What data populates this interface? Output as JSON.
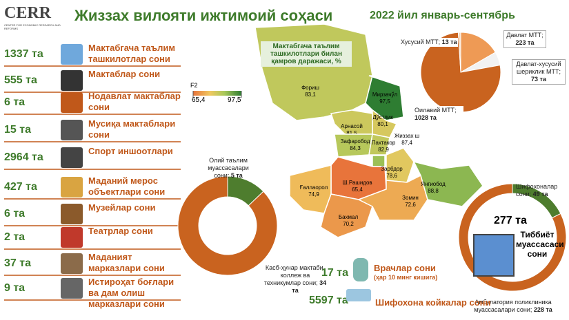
{
  "logo": {
    "name": "CERR",
    "subtitle": "CENTER FOR ECONOMIC RESEARCH AND REFORMS"
  },
  "title": "Жиззах вилояти ижтимоий соҳаси",
  "period": "2022 йил январь-сентябрь",
  "stats": [
    {
      "value": "1337 та",
      "label": "Мактабгача таълим ташкилотлар сони"
    },
    {
      "value": "555 та",
      "label": "Мактаблар сони"
    },
    {
      "value": "6 та",
      "label": "Нодавлат мактаблар сони"
    },
    {
      "value": "15 та",
      "label": "Мусиқа мактаблари сони"
    },
    {
      "value": "2964 та",
      "label": "Спорт иншоотлари"
    },
    {
      "value": "427 та",
      "label": "Маданий мерос объектлари сони"
    },
    {
      "value": "6 та",
      "label": "Музейлар сони"
    },
    {
      "value": "2 та",
      "label": "Театрлар сони"
    },
    {
      "value": "37 та",
      "label": "Маданият марказлари сони"
    },
    {
      "value": "9 та",
      "label": "Истироҳат боғлари ва дам олиш марказлари сони"
    }
  ],
  "map": {
    "title": "Мактабгача таълим ташкилотлари билан қамров даражаси, %",
    "legend": {
      "label": "F2",
      "min": {
        "value": 65.4,
        "label": "65,4"
      },
      "max": {
        "value": 97.5,
        "label": "97,5"
      }
    },
    "regions": [
      {
        "name": "Фориш",
        "value": 83.1,
        "label": "83,1"
      },
      {
        "name": "Мирзачўл",
        "value": 97.5,
        "label": "97,5"
      },
      {
        "name": "Дўстлик",
        "value": 80.1,
        "label": "80,1"
      },
      {
        "name": "Арнасой",
        "value": 81.5,
        "label": "81,5"
      },
      {
        "name": "Зафаробод",
        "value": 84.3,
        "label": "84,3"
      },
      {
        "name": "Пахтакор",
        "value": 82.9,
        "label": "82,9"
      },
      {
        "name": "Жиззах ш",
        "value": 87.4,
        "label": "87,4"
      },
      {
        "name": "Ш.Рашидов",
        "value": 65.4,
        "label": "65,4"
      },
      {
        "name": "Зарбдор",
        "value": 78.6,
        "label": "78,6"
      },
      {
        "name": "Ғаллаорол",
        "value": 74.9,
        "label": "74,9"
      },
      {
        "name": "Бахмал",
        "value": 70.2,
        "label": "70,2"
      },
      {
        "name": "Зомин",
        "value": 72.6,
        "label": "72,6"
      },
      {
        "name": "Янгиобод",
        "value": 88.8,
        "label": "88,8"
      }
    ]
  },
  "preschool_pie": {
    "names": [
      "Давлат МТТ;",
      "Давлат-хусусий шериклик МТТ;",
      "Оилавий МТТ;",
      "Хусусий МТТ;"
    ],
    "values": [
      223,
      73,
      1028,
      13
    ],
    "value_labels": [
      "223 та",
      "73 та",
      "1028 та",
      "13 та"
    ],
    "colors": [
      "#ee9a55",
      "#f2f2f2",
      "#c9631f",
      "#f7d7b8"
    ]
  },
  "education_donut": {
    "names": [
      "Олий таълим муассасалари сони;",
      "Касб-ҳунар мактаби, коллеж ва техникумлар сони;"
    ],
    "values": [
      5,
      34
    ],
    "value_labels": [
      "5 та",
      "34 та"
    ],
    "colors": [
      "#4e7d2e",
      "#c9631f"
    ]
  },
  "health_donut": {
    "names": [
      "Шифохоналар сони;",
      "Амбулатория поликлиника муассасалари сони;"
    ],
    "values": [
      49,
      228
    ],
    "value_labels": [
      "49 та",
      "228 та"
    ],
    "colors": [
      "#4e7d2e",
      "#c9631f"
    ],
    "total": "277 та",
    "center_label": "Тиббиёт муассасаси сони"
  },
  "medical": [
    {
      "value": "17 та",
      "label": "Врачлар сони",
      "note": "(ҳар 10 минг кишига)"
    },
    {
      "value": "5597 та",
      "label": "Шифохона койкалар сони"
    }
  ]
}
